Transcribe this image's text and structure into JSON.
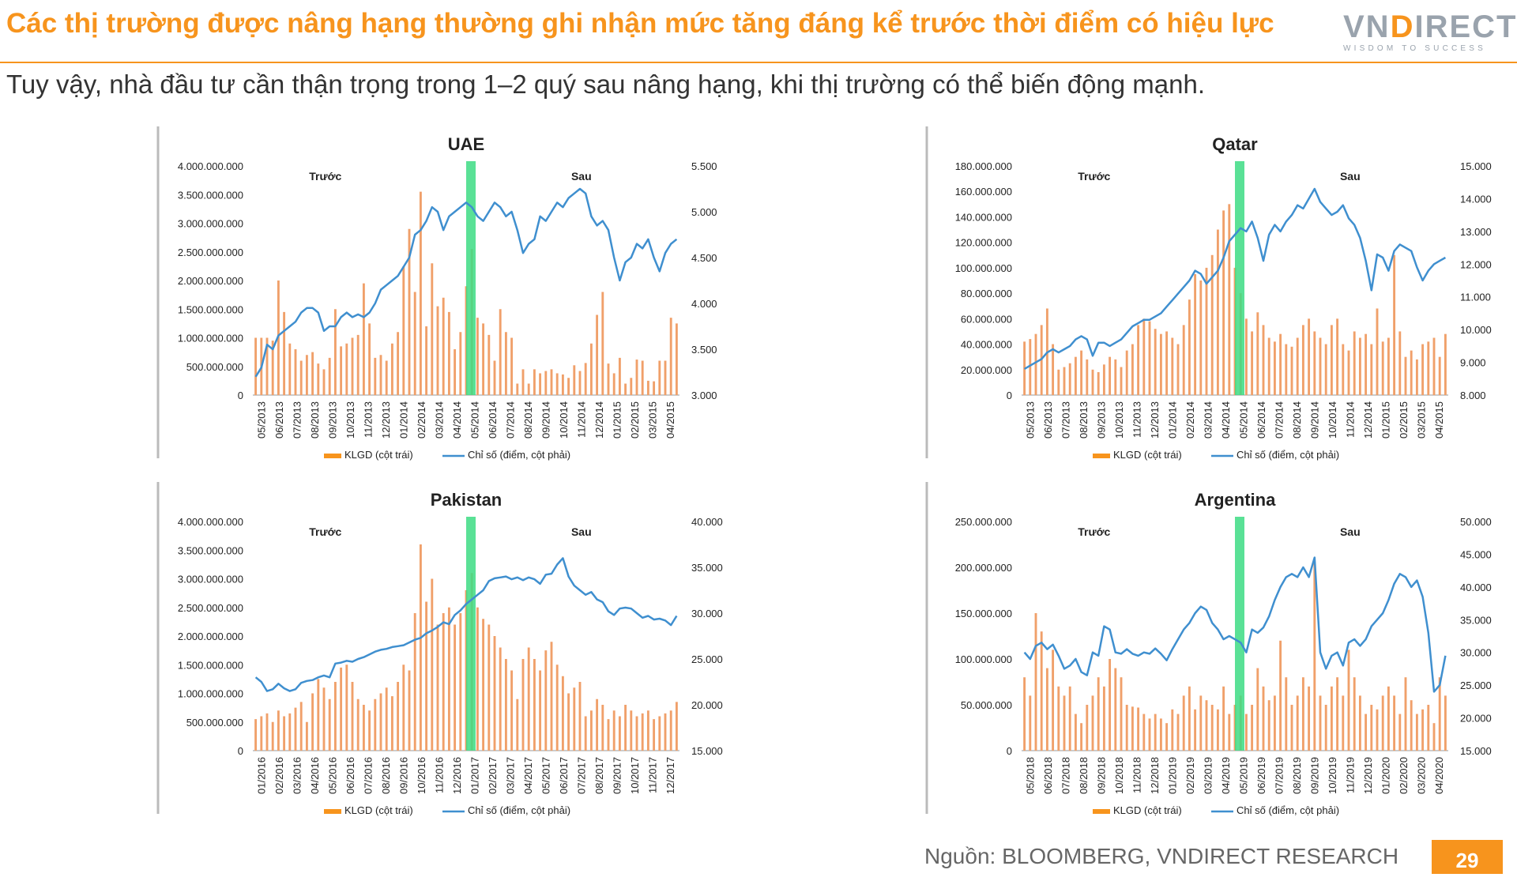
{
  "header": {
    "title": "Các thị trường được nâng hạng thường ghi nhận mức tăng đáng kể trước thời điểm có hiệu lực",
    "subtitle": "Tuy vậy, nhà đầu tư cần thận trọng trong 1–2 quý sau nâng hạng, khi thị trường có thể biến động mạnh.",
    "logo_text_left": "VN",
    "logo_text_d": "D",
    "logo_text_right": "IRECT",
    "logo_tagline": "WISDOM TO SUCCESS"
  },
  "footer": {
    "source": "Nguồn: BLOOMBERG, VNDIRECT RESEARCH",
    "page_number": "29"
  },
  "colors": {
    "accent": "#f7941d",
    "bar": "#f0a06a",
    "line": "#3f8fcf",
    "highlight": "#3ddc84"
  },
  "chart_data": [
    {
      "type": "bar",
      "title": "UAE",
      "before_label": "Trước",
      "after_label": "Sau",
      "legend": [
        "KLGD (cột trái)",
        "Chỉ số (điểm, cột phải)"
      ],
      "legend_position": "bottom",
      "left_ticks": [
        "0",
        "500.000.000",
        "1.000.000.000",
        "1.500.000.000",
        "2.000.000.000",
        "2.500.000.000",
        "3.000.000.000",
        "3.500.000.000",
        "4.000.000.000"
      ],
      "right_ticks": [
        "3.000",
        "3.500",
        "4.000",
        "4.500",
        "5.000",
        "5.500"
      ],
      "y_left_lim": [
        0,
        4000000000
      ],
      "y_right_lim": [
        3000,
        5500
      ],
      "x_labels": [
        "05/2013",
        "06/2013",
        "07/2013",
        "08/2013",
        "09/2013",
        "10/2013",
        "11/2013",
        "12/2013",
        "01/2014",
        "02/2014",
        "03/2014",
        "04/2014",
        "05/2014",
        "06/2014",
        "07/2014",
        "08/2014",
        "09/2014",
        "10/2014",
        "11/2014",
        "12/2014",
        "01/2015",
        "02/2015",
        "03/2015",
        "04/2015"
      ],
      "highlight_index": 12,
      "series": [
        {
          "name": "KLGD (cột trái)",
          "type": "bar",
          "values": [
            1000000000,
            1000000000,
            1000000000,
            950000000,
            2000000000,
            1450000000,
            900000000,
            800000000,
            600000000,
            700000000,
            750000000,
            550000000,
            450000000,
            650000000,
            1500000000,
            850000000,
            900000000,
            1000000000,
            1050000000,
            1950000000,
            1250000000,
            650000000,
            700000000,
            600000000,
            900000000,
            1100000000,
            2250000000,
            2900000000,
            1800000000,
            3550000000,
            1200000000,
            2300000000,
            1550000000,
            1700000000,
            1450000000,
            800000000,
            1100000000,
            1900000000,
            2550000000,
            1350000000,
            1250000000,
            1050000000,
            600000000,
            1500000000,
            1100000000,
            1000000000,
            200000000,
            450000000,
            200000000,
            450000000,
            380000000,
            420000000,
            450000000,
            380000000,
            360000000,
            300000000,
            520000000,
            420000000,
            560000000,
            900000000,
            1400000000,
            1800000000,
            550000000,
            380000000,
            650000000,
            200000000,
            300000000,
            620000000,
            600000000,
            250000000,
            240000000,
            600000000,
            600000000,
            1350000000,
            1250000000
          ]
        },
        {
          "name": "Chỉ số (điểm, cột phải)",
          "type": "line",
          "values": [
            3200,
            3300,
            3550,
            3500,
            3650,
            3700,
            3750,
            3800,
            3900,
            3950,
            3950,
            3900,
            3700,
            3750,
            3750,
            3850,
            3900,
            3850,
            3880,
            3850,
            3900,
            4000,
            4150,
            4200,
            4250,
            4300,
            4400,
            4500,
            4750,
            4800,
            4900,
            5050,
            5000,
            4800,
            4950,
            5000,
            5050,
            5100,
            5050,
            4950,
            4900,
            5000,
            5100,
            5050,
            4950,
            5000,
            4800,
            4550,
            4650,
            4700,
            4950,
            4900,
            5000,
            5100,
            5050,
            5150,
            5200,
            5250,
            5200,
            4950,
            4850,
            4900,
            4800,
            4500,
            4250,
            4450,
            4500,
            4650,
            4600,
            4700,
            4500,
            4350,
            4550,
            4650,
            4700
          ]
        }
      ]
    },
    {
      "type": "bar",
      "title": "Qatar",
      "before_label": "Trước",
      "after_label": "Sau",
      "legend": [
        "KLGD (cột trái)",
        "Chỉ số (điểm, cột phải)"
      ],
      "legend_position": "bottom",
      "left_ticks": [
        "0",
        "20.000.000",
        "40.000.000",
        "60.000.000",
        "80.000.000",
        "100.000.000",
        "120.000.000",
        "140.000.000",
        "160.000.000",
        "180.000.000"
      ],
      "right_ticks": [
        "8.000",
        "9.000",
        "10.000",
        "11.000",
        "12.000",
        "13.000",
        "14.000",
        "15.000"
      ],
      "y_left_lim": [
        0,
        180000000
      ],
      "y_right_lim": [
        8000,
        15000
      ],
      "x_labels": [
        "05/2013",
        "06/2013",
        "07/2013",
        "08/2013",
        "09/2013",
        "10/2013",
        "11/2013",
        "12/2013",
        "01/2014",
        "02/2014",
        "03/2014",
        "04/2014",
        "05/2014",
        "06/2014",
        "07/2014",
        "08/2014",
        "09/2014",
        "10/2014",
        "11/2014",
        "12/2014",
        "01/2015",
        "02/2015",
        "03/2015",
        "04/2015"
      ],
      "highlight_index": 12,
      "series": [
        {
          "name": "KLGD (cột trái)",
          "type": "bar",
          "values": [
            42000000,
            44000000,
            48000000,
            55000000,
            68000000,
            40000000,
            20000000,
            22000000,
            25000000,
            30000000,
            35000000,
            28000000,
            20000000,
            18000000,
            24000000,
            30000000,
            28000000,
            22000000,
            35000000,
            40000000,
            55000000,
            60000000,
            58000000,
            52000000,
            48000000,
            50000000,
            45000000,
            40000000,
            55000000,
            75000000,
            95000000,
            90000000,
            100000000,
            110000000,
            130000000,
            145000000,
            150000000,
            100000000,
            80000000,
            60000000,
            50000000,
            65000000,
            55000000,
            45000000,
            42000000,
            48000000,
            40000000,
            38000000,
            45000000,
            55000000,
            60000000,
            50000000,
            45000000,
            40000000,
            55000000,
            60000000,
            40000000,
            35000000,
            50000000,
            45000000,
            48000000,
            40000000,
            68000000,
            42000000,
            45000000,
            110000000,
            50000000,
            30000000,
            35000000,
            28000000,
            40000000,
            42000000,
            45000000,
            30000000,
            48000000
          ]
        },
        {
          "name": "Chỉ số (điểm, cột phải)",
          "type": "line",
          "values": [
            8800,
            8900,
            9000,
            9100,
            9300,
            9400,
            9300,
            9400,
            9500,
            9700,
            9800,
            9700,
            9200,
            9600,
            9600,
            9500,
            9600,
            9700,
            9900,
            10100,
            10200,
            10300,
            10300,
            10400,
            10500,
            10700,
            10900,
            11100,
            11300,
            11500,
            11800,
            11700,
            11400,
            11600,
            11800,
            12200,
            12700,
            12900,
            13100,
            13000,
            13300,
            12800,
            12100,
            12900,
            13200,
            13000,
            13300,
            13500,
            13800,
            13700,
            14000,
            14300,
            13900,
            13700,
            13500,
            13600,
            13800,
            13400,
            13200,
            12800,
            12100,
            11200,
            12300,
            12200,
            11800,
            12400,
            12600,
            12500,
            12400,
            11900,
            11500,
            11800,
            12000,
            12100,
            12200
          ]
        }
      ]
    },
    {
      "type": "bar",
      "title": "Pakistan",
      "before_label": "Trước",
      "after_label": "Sau",
      "legend": [
        "KLGD (cột trái)",
        "Chỉ số (điểm, cột phải)"
      ],
      "legend_position": "bottom",
      "left_ticks": [
        "0",
        "500.000.000",
        "1.000.000.000",
        "1.500.000.000",
        "2.000.000.000",
        "2.500.000.000",
        "3.000.000.000",
        "3.500.000.000",
        "4.000.000.000"
      ],
      "right_ticks": [
        "15.000",
        "20.000",
        "25.000",
        "30.000",
        "35.000",
        "40.000"
      ],
      "y_left_lim": [
        0,
        4000000000
      ],
      "y_right_lim": [
        15000,
        40000
      ],
      "x_labels": [
        "01/2016",
        "02/2016",
        "03/2016",
        "04/2016",
        "05/2016",
        "06/2016",
        "07/2016",
        "08/2016",
        "09/2016",
        "10/2016",
        "11/2016",
        "12/2016",
        "01/2017",
        "02/2017",
        "03/2017",
        "04/2017",
        "05/2017",
        "06/2017",
        "07/2017",
        "08/2017",
        "09/2017",
        "10/2017",
        "11/2017",
        "12/2017"
      ],
      "highlight_index": 12,
      "series": [
        {
          "name": "KLGD (cột trái)",
          "type": "bar",
          "values": [
            550000000,
            600000000,
            650000000,
            500000000,
            700000000,
            600000000,
            650000000,
            750000000,
            850000000,
            500000000,
            1000000000,
            1250000000,
            1100000000,
            900000000,
            1200000000,
            1450000000,
            1500000000,
            1200000000,
            900000000,
            800000000,
            700000000,
            900000000,
            1000000000,
            1100000000,
            950000000,
            1200000000,
            1500000000,
            1400000000,
            2400000000,
            3600000000,
            2600000000,
            3000000000,
            2200000000,
            2400000000,
            2500000000,
            2200000000,
            2400000000,
            2800000000,
            3100000000,
            2500000000,
            2300000000,
            2200000000,
            2000000000,
            1800000000,
            1600000000,
            1400000000,
            900000000,
            1600000000,
            1800000000,
            1600000000,
            1400000000,
            1750000000,
            1900000000,
            1500000000,
            1300000000,
            1000000000,
            1100000000,
            1200000000,
            600000000,
            700000000,
            900000000,
            800000000,
            550000000,
            700000000,
            600000000,
            800000000,
            700000000,
            600000000,
            650000000,
            700000000,
            550000000,
            600000000,
            650000000,
            700000000,
            850000000
          ]
        },
        {
          "name": "Chỉ số (điểm, cột phải)",
          "type": "line",
          "values": [
            23000,
            22500,
            21500,
            21700,
            22300,
            21800,
            21500,
            21700,
            22400,
            22600,
            22700,
            23000,
            23200,
            23000,
            24500,
            24600,
            24800,
            24700,
            25000,
            25200,
            25500,
            25800,
            26000,
            26100,
            26300,
            26400,
            26500,
            26800,
            27100,
            27300,
            27800,
            28100,
            28500,
            29000,
            28800,
            29800,
            30300,
            31000,
            31500,
            32000,
            32500,
            33500,
            33800,
            33900,
            34000,
            33700,
            33900,
            33600,
            33900,
            33700,
            33200,
            34200,
            34300,
            35300,
            36000,
            34000,
            33000,
            32500,
            32000,
            32300,
            31500,
            31200,
            30200,
            29800,
            30500,
            30600,
            30500,
            30000,
            29500,
            29700,
            29300,
            29400,
            29200,
            28700,
            29700
          ]
        }
      ]
    },
    {
      "type": "bar",
      "title": "Argentina",
      "before_label": "Trước",
      "after_label": "Sau",
      "legend": [
        "KLGD (cột trái)",
        "Chỉ số (điểm, cột phải)"
      ],
      "legend_position": "bottom",
      "left_ticks": [
        "0",
        "50.000.000",
        "100.000.000",
        "150.000.000",
        "200.000.000",
        "250.000.000"
      ],
      "right_ticks": [
        "15.000",
        "20.000",
        "25.000",
        "30.000",
        "35.000",
        "40.000",
        "45.000",
        "50.000"
      ],
      "y_left_lim": [
        0,
        250000000
      ],
      "y_right_lim": [
        15000,
        50000
      ],
      "x_labels": [
        "05/2018",
        "06/2018",
        "07/2018",
        "08/2018",
        "09/2018",
        "10/2018",
        "11/2018",
        "12/2018",
        "01/2019",
        "02/2019",
        "03/2019",
        "04/2019",
        "05/2019",
        "06/2019",
        "07/2019",
        "08/2019",
        "09/2019",
        "10/2019",
        "11/2019",
        "12/2019",
        "01/2020",
        "02/2020",
        "03/2020",
        "04/2020"
      ],
      "highlight_index": 12,
      "series": [
        {
          "name": "KLGD (cột trái)",
          "type": "bar",
          "values": [
            80000000,
            60000000,
            150000000,
            130000000,
            90000000,
            110000000,
            70000000,
            60000000,
            70000000,
            40000000,
            30000000,
            50000000,
            60000000,
            80000000,
            70000000,
            100000000,
            90000000,
            80000000,
            50000000,
            48000000,
            47000000,
            40000000,
            35000000,
            40000000,
            35000000,
            30000000,
            45000000,
            40000000,
            60000000,
            70000000,
            45000000,
            60000000,
            55000000,
            50000000,
            45000000,
            70000000,
            40000000,
            50000000,
            60000000,
            40000000,
            50000000,
            90000000,
            70000000,
            55000000,
            60000000,
            120000000,
            80000000,
            50000000,
            60000000,
            80000000,
            70000000,
            205000000,
            60000000,
            50000000,
            70000000,
            80000000,
            60000000,
            110000000,
            80000000,
            60000000,
            40000000,
            50000000,
            45000000,
            60000000,
            70000000,
            60000000,
            40000000,
            80000000,
            55000000,
            40000000,
            45000000,
            50000000,
            30000000,
            80000000,
            60000000
          ]
        },
        {
          "name": "Chỉ số (điểm, cột phải)",
          "type": "line",
          "values": [
            30000,
            29000,
            31000,
            31500,
            30500,
            31200,
            29500,
            27500,
            28000,
            29000,
            27000,
            26500,
            30000,
            29500,
            34000,
            33500,
            30000,
            29800,
            30500,
            29800,
            29500,
            30000,
            29800,
            30600,
            29800,
            28800,
            30500,
            32000,
            33500,
            34500,
            36000,
            37000,
            36500,
            34500,
            33500,
            32000,
            32500,
            32000,
            31500,
            30000,
            33500,
            33000,
            33800,
            35500,
            38000,
            40000,
            41500,
            42000,
            41500,
            43000,
            41500,
            44500,
            30000,
            27500,
            29500,
            30000,
            28000,
            31500,
            32000,
            31000,
            32000,
            34000,
            35000,
            36000,
            38000,
            40500,
            42000,
            41500,
            40000,
            41000,
            38500,
            33000,
            24000,
            25000,
            29500
          ]
        }
      ]
    }
  ]
}
